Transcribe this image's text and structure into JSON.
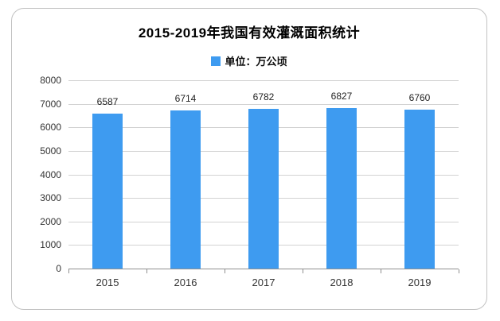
{
  "chart": {
    "title": "2015-2019年我国有效灌溉面积统计",
    "legend_label": "单位：万公顷"
  },
  "chart_data": {
    "type": "bar",
    "title": "2015-2019年我国有效灌溉面积统计",
    "legend": [
      "单位：万公顷"
    ],
    "legend_position": "top",
    "categories": [
      "2015",
      "2016",
      "2017",
      "2018",
      "2019"
    ],
    "values": [
      6587,
      6714,
      6782,
      6827,
      6760
    ],
    "xlabel": "",
    "ylabel": "",
    "ylim": [
      0,
      8000
    ],
    "yticks": [
      0,
      1000,
      2000,
      3000,
      4000,
      5000,
      6000,
      7000,
      8000
    ],
    "grid": true,
    "data_labels_shown": true
  },
  "colors": {
    "bar": "#3E9BF0",
    "gridline": "#d2d2d2",
    "axis_line": "#8f8f8f",
    "card_border": "#c2c2c2",
    "title_text": "#000000",
    "label_text": "#333333",
    "background": "#ffffff"
  }
}
